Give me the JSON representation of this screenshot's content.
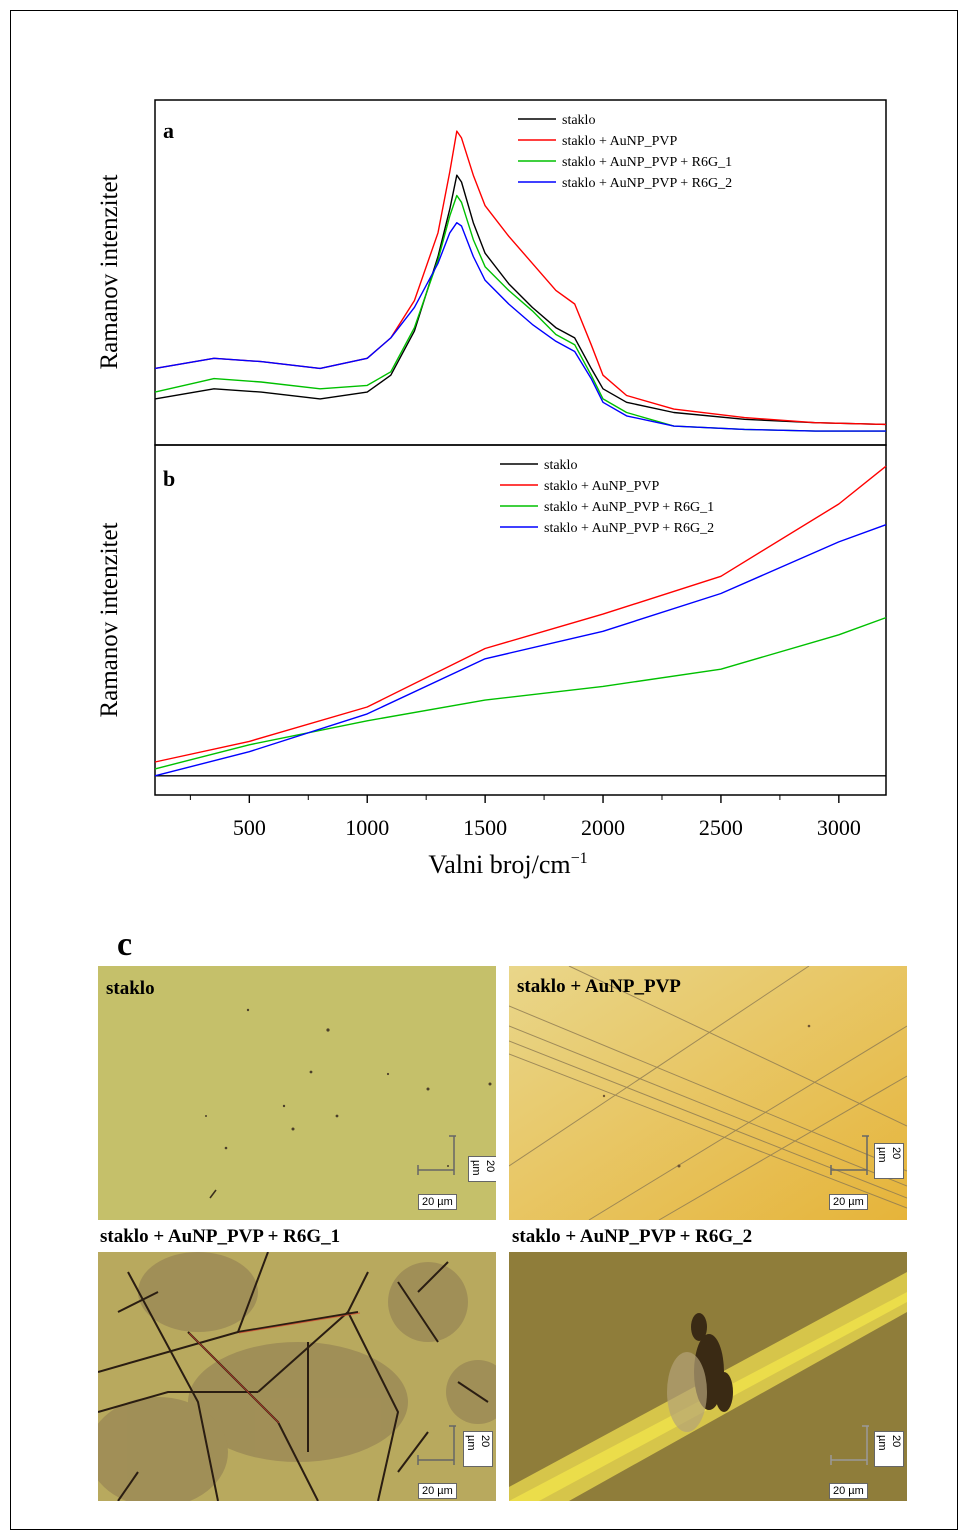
{
  "figure": {
    "panel_a_label": "a",
    "panel_b_label": "b",
    "panel_c_label": "c",
    "ylabel": "Ramanov intenzitet",
    "xlabel": "Valni broj/cm",
    "xlabel_sup": "−1",
    "xticks": [
      500,
      1000,
      1500,
      2000,
      2500,
      3000
    ],
    "micrographs": [
      {
        "label": "staklo",
        "scale_h": "20 µm",
        "scale_v": "20 µm"
      },
      {
        "label": "staklo + AuNP_PVP",
        "scale_h": "20 µm",
        "scale_v": "20 µm"
      },
      {
        "label": "staklo + AuNP_PVP + R6G_1",
        "scale_h": "20 µm",
        "scale_v": "20 µm"
      },
      {
        "label": "staklo + AuNP_PVP + R6G_2",
        "scale_h": "20 µm",
        "scale_v": "20 µm"
      }
    ]
  },
  "chart_data": [
    {
      "type": "line",
      "panel": "a",
      "xlabel": "Valni broj/cm−1",
      "ylabel": "Ramanov intenzitet",
      "xlim": [
        100,
        3200
      ],
      "ylim": [
        0,
        100
      ],
      "yticks_shown": false,
      "legend_position": "top-right",
      "x": [
        100,
        350,
        550,
        800,
        1000,
        1100,
        1200,
        1300,
        1350,
        1380,
        1400,
        1450,
        1500,
        1600,
        1700,
        1800,
        1880,
        1950,
        2000,
        2100,
        2300,
        2600,
        2900,
        3200
      ],
      "series": [
        {
          "name": "staklo",
          "color": "#000000",
          "values": [
            13,
            16,
            15,
            13,
            15,
            20,
            33,
            55,
            69,
            79,
            77,
            65,
            56,
            47,
            40,
            34,
            31,
            22,
            16,
            12,
            9,
            7,
            6,
            5.5
          ]
        },
        {
          "name": "staklo + AuNP_PVP",
          "color": "#ff0000",
          "values": [
            22,
            25,
            24,
            22,
            25,
            31,
            42,
            62,
            80,
            92,
            90,
            79,
            70,
            61,
            53,
            45,
            41,
            29,
            20,
            14,
            10,
            7.5,
            6,
            5.5
          ]
        },
        {
          "name": "staklo + AuNP_PVP + R6G_1",
          "color": "#00c000",
          "values": [
            15,
            19,
            18,
            16,
            17,
            21,
            34,
            54,
            67,
            73,
            71,
            60,
            52,
            45,
            39,
            32,
            29,
            20,
            13,
            9,
            5,
            4,
            3.5,
            3.5
          ]
        },
        {
          "name": "staklo + AuNP_PVP + R6G_2",
          "color": "#0000ff",
          "values": [
            22,
            25,
            24,
            22,
            25,
            31,
            40,
            53,
            62,
            65,
            64,
            55,
            48,
            41,
            35,
            30,
            27,
            19,
            12,
            8,
            5,
            4,
            3.5,
            3.5
          ]
        }
      ]
    },
    {
      "type": "line",
      "panel": "b",
      "xlabel": "Valni broj/cm−1",
      "ylabel": "Ramanov intenzitet",
      "xlim": [
        100,
        3200
      ],
      "ylim": [
        0,
        100
      ],
      "xticks": [
        500,
        1000,
        1500,
        2000,
        2500,
        3000
      ],
      "yticks_shown": false,
      "legend_position": "top-right",
      "x": [
        100,
        500,
        1000,
        1500,
        2000,
        2500,
        3000,
        3200
      ],
      "series": [
        {
          "name": "staklo",
          "color": "#000000",
          "values": [
            5,
            5,
            5,
            5,
            5,
            5,
            5,
            5
          ]
        },
        {
          "name": "staklo + AuNP_PVP",
          "color": "#ff0000",
          "values": [
            9,
            15,
            25,
            42,
            52,
            63,
            84,
            95
          ]
        },
        {
          "name": "staklo + AuNP_PVP + R6G_1",
          "color": "#00c000",
          "values": [
            7,
            14,
            21,
            27,
            31,
            36,
            46,
            51
          ]
        },
        {
          "name": "staklo + AuNP_PVP + R6G_2",
          "color": "#0000ff",
          "values": [
            5,
            12,
            23,
            39,
            47,
            58,
            73,
            78
          ]
        }
      ]
    }
  ]
}
